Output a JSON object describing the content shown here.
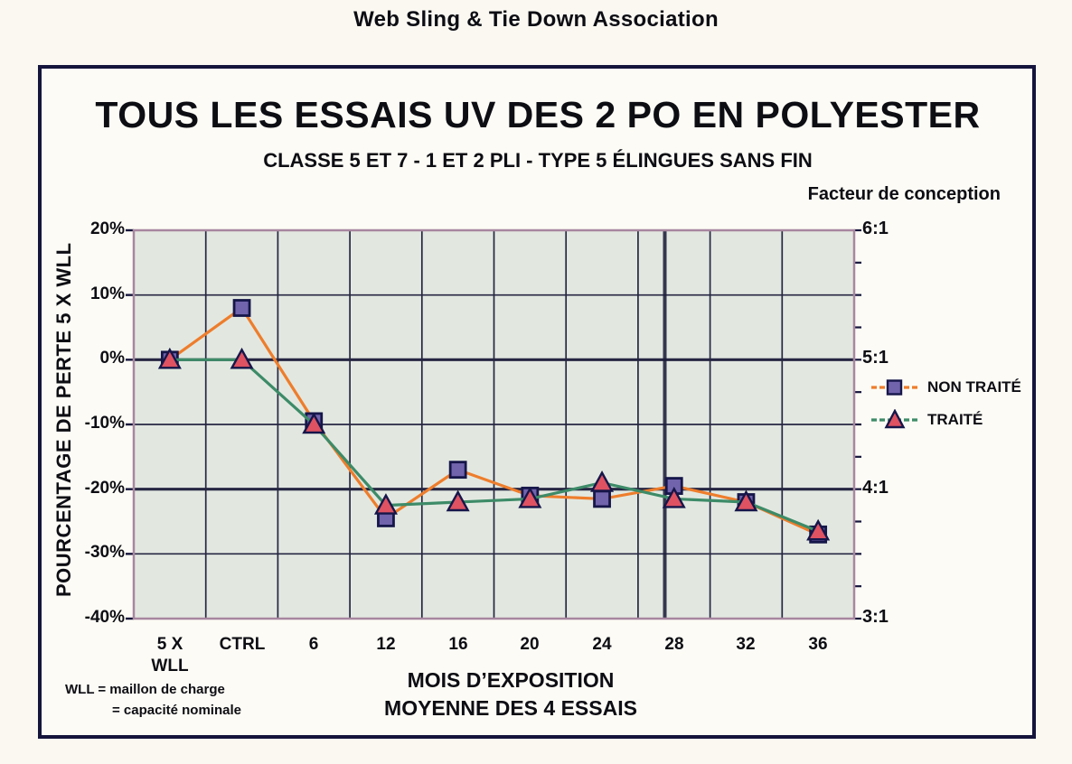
{
  "page": {
    "header": "Web Sling & Tie Down Association"
  },
  "chart": {
    "title": "TOUS LES ESSAIS UV DES 2 PO EN POLYESTER",
    "subtitle": "CLASSE 5 ET 7 - 1 ET 2 PLI - TYPE 5 ÉLINGUES SANS FIN",
    "right_axis_title": "Facteur de conception",
    "y_axis_title": "POURCENTAGE DE PERTE 5 X WLL",
    "x_axis_title_line1": "MOIS D’EXPOSITION",
    "x_axis_title_line2": "MOYENNE DES 4 ESSAIS",
    "footnote_line1": "WLL = maillon de charge",
    "footnote_line2": "= capacité nominale"
  },
  "chart_data": {
    "type": "line",
    "title": "TOUS LES ESSAIS UV DES 2 PO EN POLYESTER",
    "subtitle": "CLASSE 5 ET 7 - 1 ET 2 PLI - TYPE 5 ÉLINGUES SANS FIN",
    "xlabel": "MOIS D’EXPOSITION — MOYENNE DES 4 ESSAIS",
    "ylabel": "POURCENTAGE DE PERTE 5 X WLL",
    "ylabel_right": "Facteur de conception",
    "categories": [
      "5 X WLL",
      "CTRL",
      "6",
      "12",
      "16",
      "20",
      "24",
      "28",
      "32",
      "36"
    ],
    "tick_lines": [
      [
        "5 X",
        "WLL"
      ],
      [
        "CTRL"
      ],
      [
        "6"
      ],
      [
        "12"
      ],
      [
        "16"
      ],
      [
        "20"
      ],
      [
        "24"
      ],
      [
        "28"
      ],
      [
        "32"
      ],
      [
        "36"
      ]
    ],
    "series": [
      {
        "name": "NON TRAITÉ",
        "marker": "square",
        "line_color": "#EE7D2C",
        "marker_fill": "#7163AC",
        "marker_stroke": "#16164A",
        "values": [
          0,
          8,
          -9.5,
          -24.5,
          -17,
          -21,
          -21.5,
          -19.5,
          -22,
          -27
        ]
      },
      {
        "name": "TRAITÉ",
        "marker": "triangle",
        "line_color": "#3D8B68",
        "marker_fill": "#DE5261",
        "marker_stroke": "#16164A",
        "values": [
          0,
          0,
          -10,
          -22.5,
          -22,
          -21.5,
          -19,
          -21.5,
          -22,
          -26.5
        ]
      }
    ],
    "ylim": [
      -40,
      20
    ],
    "y_ticks": [
      "20%",
      "10%",
      "0%",
      "-10%",
      "-20%",
      "-30%",
      "-40%"
    ],
    "right_ticks": [
      "6:1",
      "5:1",
      "4:1",
      "3:1"
    ],
    "grid": "on",
    "legend_position": "right",
    "colors": {
      "plot_background": "#E2E8E0",
      "grid_line": "#262643",
      "plot_frame": "#A886A0",
      "chart_border": "#14143C",
      "text": "#0D0D14"
    }
  }
}
